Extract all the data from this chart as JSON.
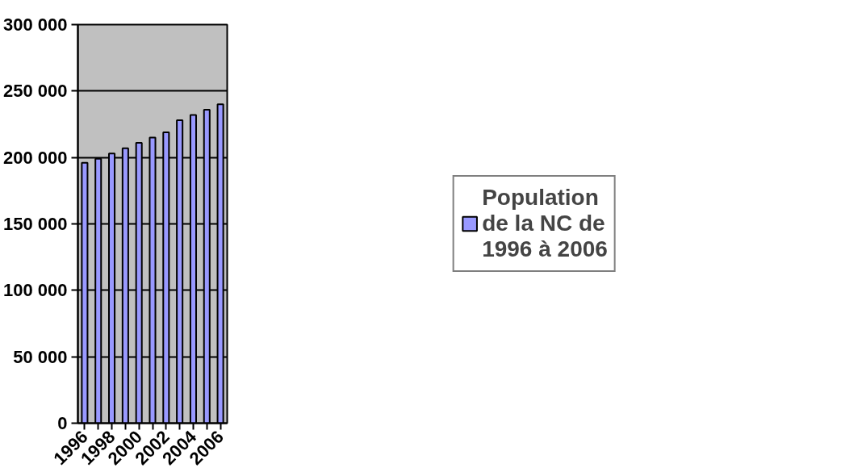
{
  "chart_data": {
    "type": "bar",
    "categories": [
      "1996",
      null,
      "1998",
      null,
      "2000",
      null,
      "2002",
      null,
      "2004",
      null,
      "2006"
    ],
    "series": [
      {
        "name": "Population de la NC de 1996 à 2006",
        "color": "#9999ff",
        "values": [
          196000,
          199000,
          203000,
          207000,
          211000,
          215000,
          219000,
          228000,
          232000,
          236000,
          240000
        ]
      }
    ],
    "ylim": [
      0,
      300000
    ],
    "yticks": [
      {
        "value": 0,
        "label": "0"
      },
      {
        "value": 50000,
        "label": "50 000"
      },
      {
        "value": 100000,
        "label": "100 000"
      },
      {
        "value": 150000,
        "label": "150 000"
      },
      {
        "value": 200000,
        "label": "200 000"
      },
      {
        "value": 250000,
        "label": "250 000"
      },
      {
        "value": 300000,
        "label": "300 000"
      }
    ],
    "grid": "y",
    "legend": "right"
  }
}
